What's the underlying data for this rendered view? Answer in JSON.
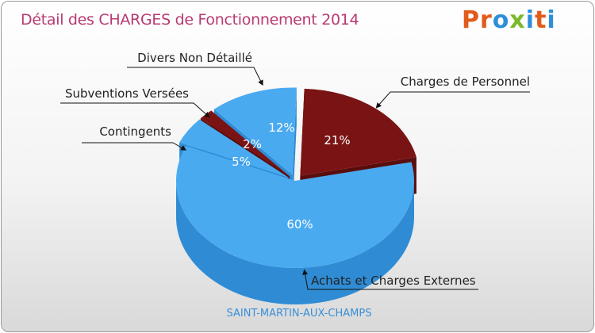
{
  "header": {
    "title": "Détail des CHARGES de Fonctionnement 2014",
    "logo_letters": [
      "P",
      "r",
      "o",
      "x",
      "i",
      "t",
      "i"
    ],
    "logo_colors": [
      "#e25b1a",
      "#e25b1a",
      "#2e8fd9",
      "#7ab929",
      "#2e8fd9",
      "#e25b1a",
      "#2e8fd9"
    ]
  },
  "footer": {
    "location": "SAINT-MARTIN-AUX-CHAMPS"
  },
  "chart_data": {
    "type": "pie",
    "title": "Détail des CHARGES de Fonctionnement 2014",
    "slices": [
      {
        "label": "Charges de Personnel",
        "value": 21,
        "pct_label": "21%",
        "color": "#7a1414",
        "side": "#5a0d0d"
      },
      {
        "label": "Achats et Charges Externes",
        "value": 60,
        "pct_label": "60%",
        "color": "#4aaaf0",
        "side": "#2f8cd4"
      },
      {
        "label": "Contingents",
        "value": 5,
        "pct_label": "5%",
        "color": "#4aaaf0",
        "side": "#2f8cd4"
      },
      {
        "label": "Subventions Versées",
        "value": 2,
        "pct_label": "2%",
        "color": "#7a1414",
        "side": "#5a0d0d"
      },
      {
        "label": "Divers Non Détaillé",
        "value": 12,
        "pct_label": "12%",
        "color": "#4aaaf0",
        "side": "#2f8cd4"
      }
    ]
  }
}
